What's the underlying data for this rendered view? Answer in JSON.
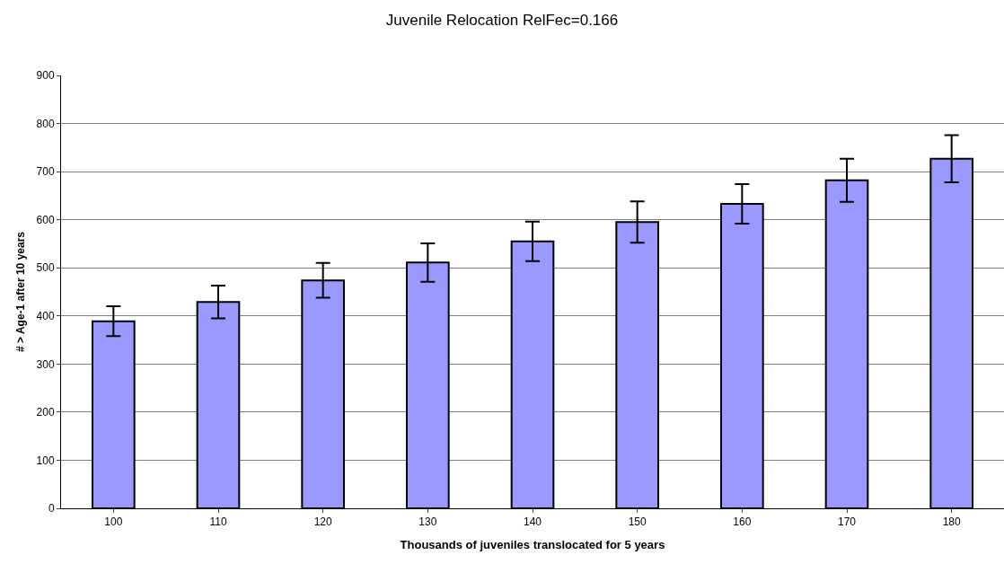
{
  "chart_data": {
    "type": "bar",
    "title": "Juvenile Relocation RelFec=0.166",
    "xlabel": "Thousands of juveniles translocated for 5 years",
    "ylabel": "# > Age-1 after 10 years",
    "categories": [
      "100",
      "110",
      "120",
      "130",
      "140",
      "150",
      "160",
      "170",
      "180"
    ],
    "values": [
      389,
      429,
      474,
      511,
      555,
      595,
      633,
      682,
      727
    ],
    "errors": [
      31,
      34,
      36,
      40,
      41,
      43,
      41,
      45,
      49
    ],
    "color": "#9999ff",
    "ylim": [
      0,
      900
    ],
    "yticks": [
      0,
      100,
      200,
      300,
      400,
      500,
      600,
      700,
      800,
      900
    ],
    "grid": "y",
    "legend": false
  }
}
